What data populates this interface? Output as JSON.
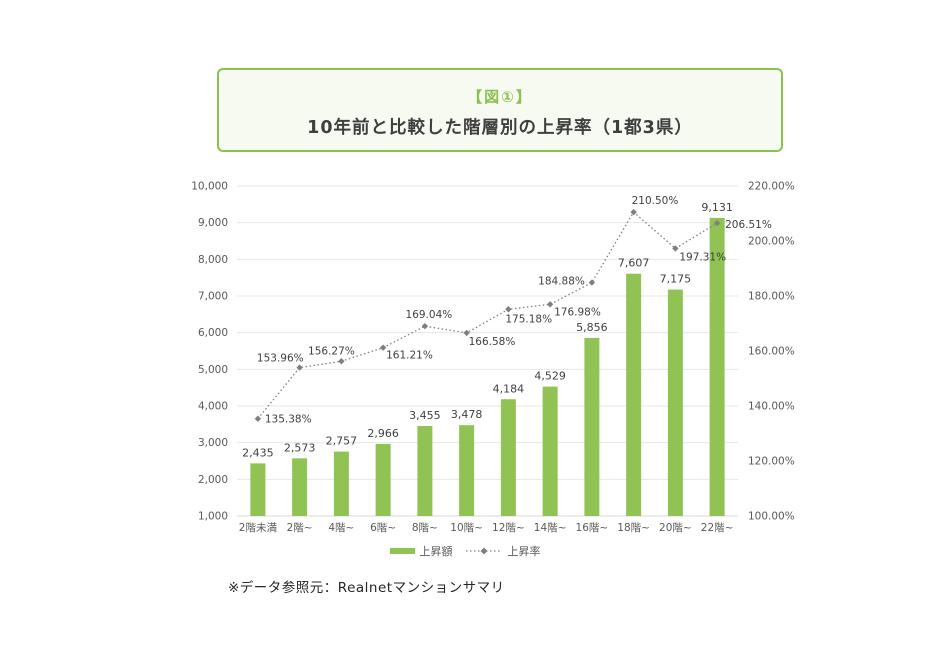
{
  "title_box": {
    "tag": "【図①】",
    "title": "10年前と比較した階層別の上昇率（1都3県）"
  },
  "legend": {
    "bar_label": "上昇額",
    "line_label": "上昇率"
  },
  "footer": {
    "source_note": "※データ参照元：Realnetマンションサマリ"
  },
  "colors": {
    "accent_green": "#8cc152",
    "bar_green": "#90c353",
    "box_bg": "#f7faf1",
    "grid": "#e7e7e7",
    "grid_baseline": "#d8d8d8",
    "axis_text": "#595959",
    "data_label_text": "#3f3f3f",
    "line_gray": "#7f7f7f"
  },
  "chart_data": {
    "type": "bar",
    "subtype": "bar+line combo, dual axis",
    "categories": [
      "2階未満",
      "2階~",
      "4階~",
      "6階~",
      "8階~",
      "10階~",
      "12階~",
      "14階~",
      "16階~",
      "18階~",
      "20階~",
      "22階~"
    ],
    "series": [
      {
        "name": "上昇額",
        "type": "bar",
        "axis": "left",
        "values": [
          2435,
          2573,
          2757,
          2966,
          3455,
          3478,
          4184,
          4529,
          5856,
          7607,
          7175,
          9131
        ],
        "labels": [
          "2,435",
          "2,573",
          "2,757",
          "2,966",
          "3,455",
          "3,478",
          "4,184",
          "4,529",
          "5,856",
          "7,607",
          "7,175",
          "9,131"
        ]
      },
      {
        "name": "上昇率",
        "type": "line",
        "axis": "right",
        "style": "dotted, diamond markers",
        "values": [
          135.38,
          153.96,
          156.27,
          161.21,
          169.04,
          166.58,
          175.18,
          176.98,
          184.88,
          210.5,
          197.31,
          206.51
        ],
        "labels": [
          "135.38%",
          "153.96%",
          "156.27%",
          "161.21%",
          "169.04%",
          "166.58%",
          "175.18%",
          "176.98%",
          "184.88%",
          "210.50%",
          "197.31%",
          "206.51%"
        ]
      }
    ],
    "left_axis": {
      "min": 1000,
      "max": 10000,
      "step": 1000,
      "ticks": [
        "1,000",
        "2,000",
        "3,000",
        "4,000",
        "5,000",
        "6,000",
        "7,000",
        "8,000",
        "9,000",
        "10,000"
      ]
    },
    "right_axis": {
      "min": 100,
      "max": 220,
      "step": 20,
      "ticks": [
        "100.00%",
        "120.00%",
        "140.00%",
        "160.00%",
        "180.00%",
        "200.00%",
        "220.00%"
      ]
    },
    "grid": true,
    "legend_position": "bottom"
  }
}
